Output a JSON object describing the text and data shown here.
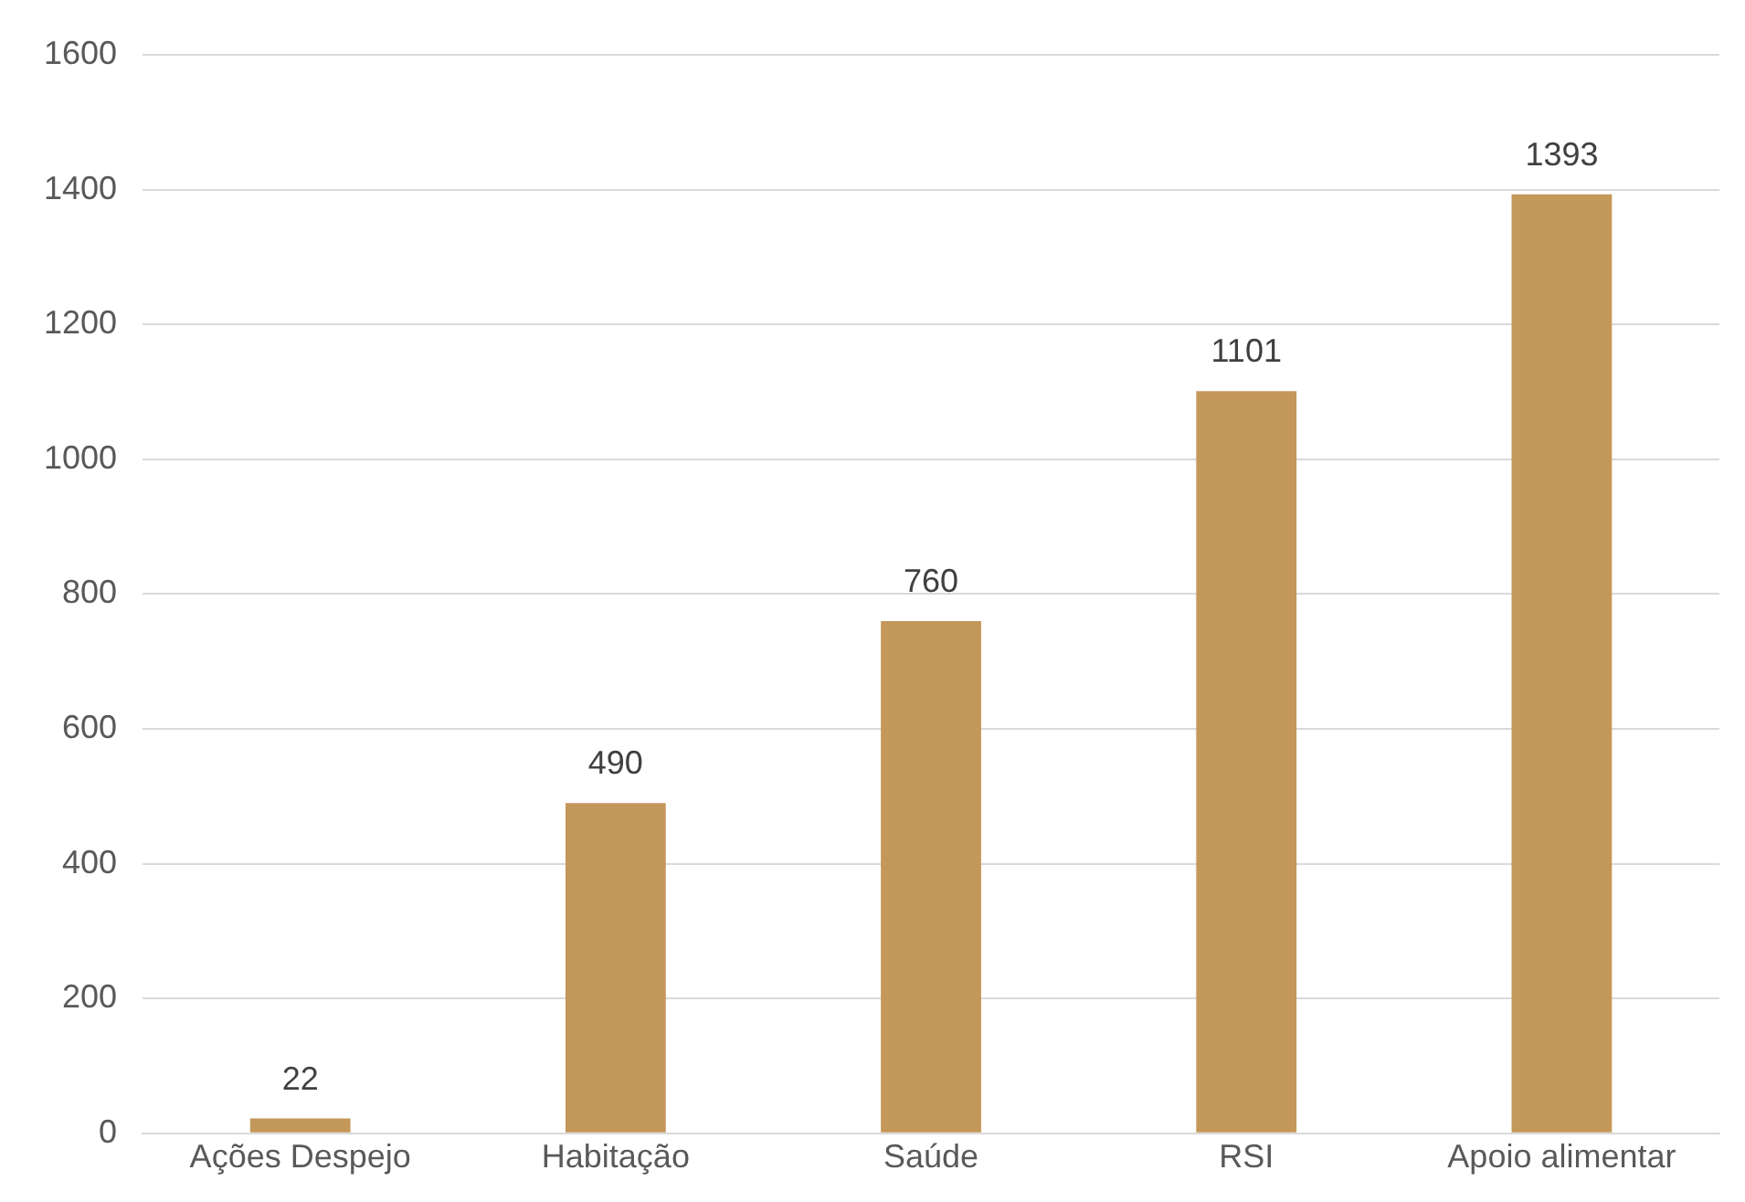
{
  "chart_data": {
    "type": "bar",
    "categories": [
      "Ações Despejo",
      "Habitação",
      "Saúde",
      "RSI",
      "Apoio alimentar"
    ],
    "values": [
      22,
      490,
      760,
      1101,
      1393
    ],
    "color": "#c4975a",
    "ylim": [
      0,
      1600
    ],
    "yticks": [
      0,
      200,
      400,
      600,
      800,
      1000,
      1200,
      1400,
      1600
    ],
    "grid": "y",
    "data_labels": true,
    "legend": false
  }
}
